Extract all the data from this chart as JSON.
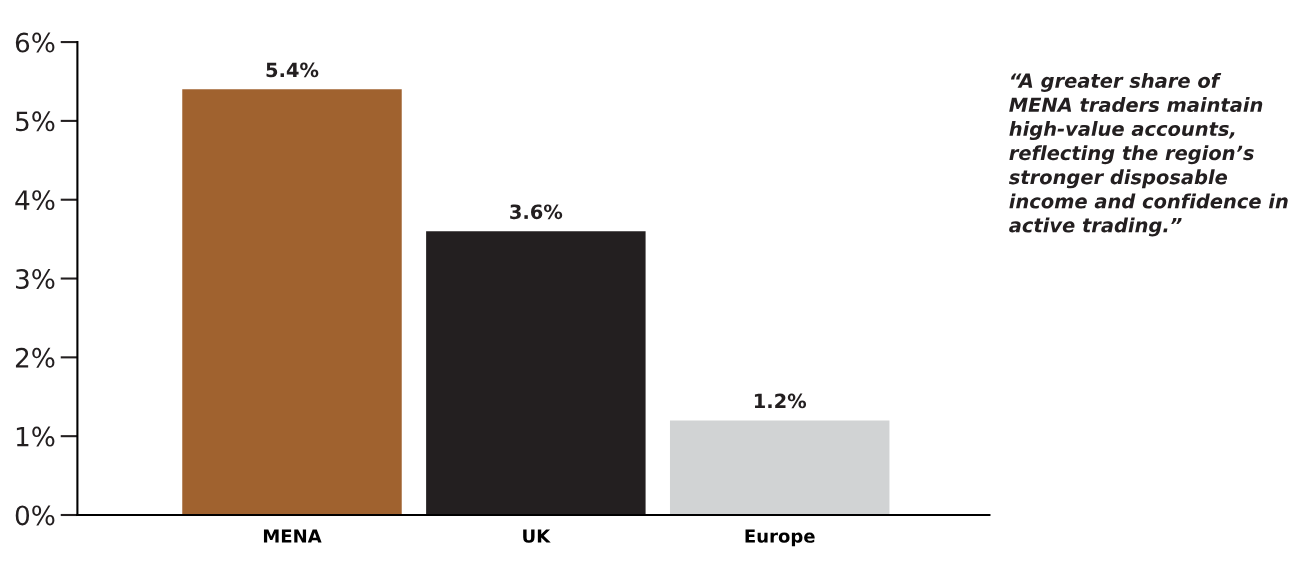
{
  "chart_data": {
    "type": "bar",
    "categories": [
      "MENA",
      "UK",
      "Europe"
    ],
    "values": [
      5.4,
      3.6,
      1.2
    ],
    "colors": [
      "#a0622f",
      "#231f20",
      "#d1d3d4"
    ],
    "value_labels": [
      "5.4%",
      "3.6%",
      "1.2%"
    ],
    "ylim": [
      0,
      6
    ],
    "yticks": [
      {
        "value": 0,
        "label": "0%"
      },
      {
        "value": 1,
        "label": "1%"
      },
      {
        "value": 2,
        "label": "2%"
      },
      {
        "value": 3,
        "label": "3%"
      },
      {
        "value": 4,
        "label": "4%"
      },
      {
        "value": 5,
        "label": "5%"
      },
      {
        "value": 6,
        "label": "6%"
      }
    ],
    "grid": false,
    "legend": false,
    "annotations": [
      "“A greater share of MENA traders maintain high-value accounts, reflecting the region’s stronger disposable income and confidence in active trading.”"
    ]
  }
}
